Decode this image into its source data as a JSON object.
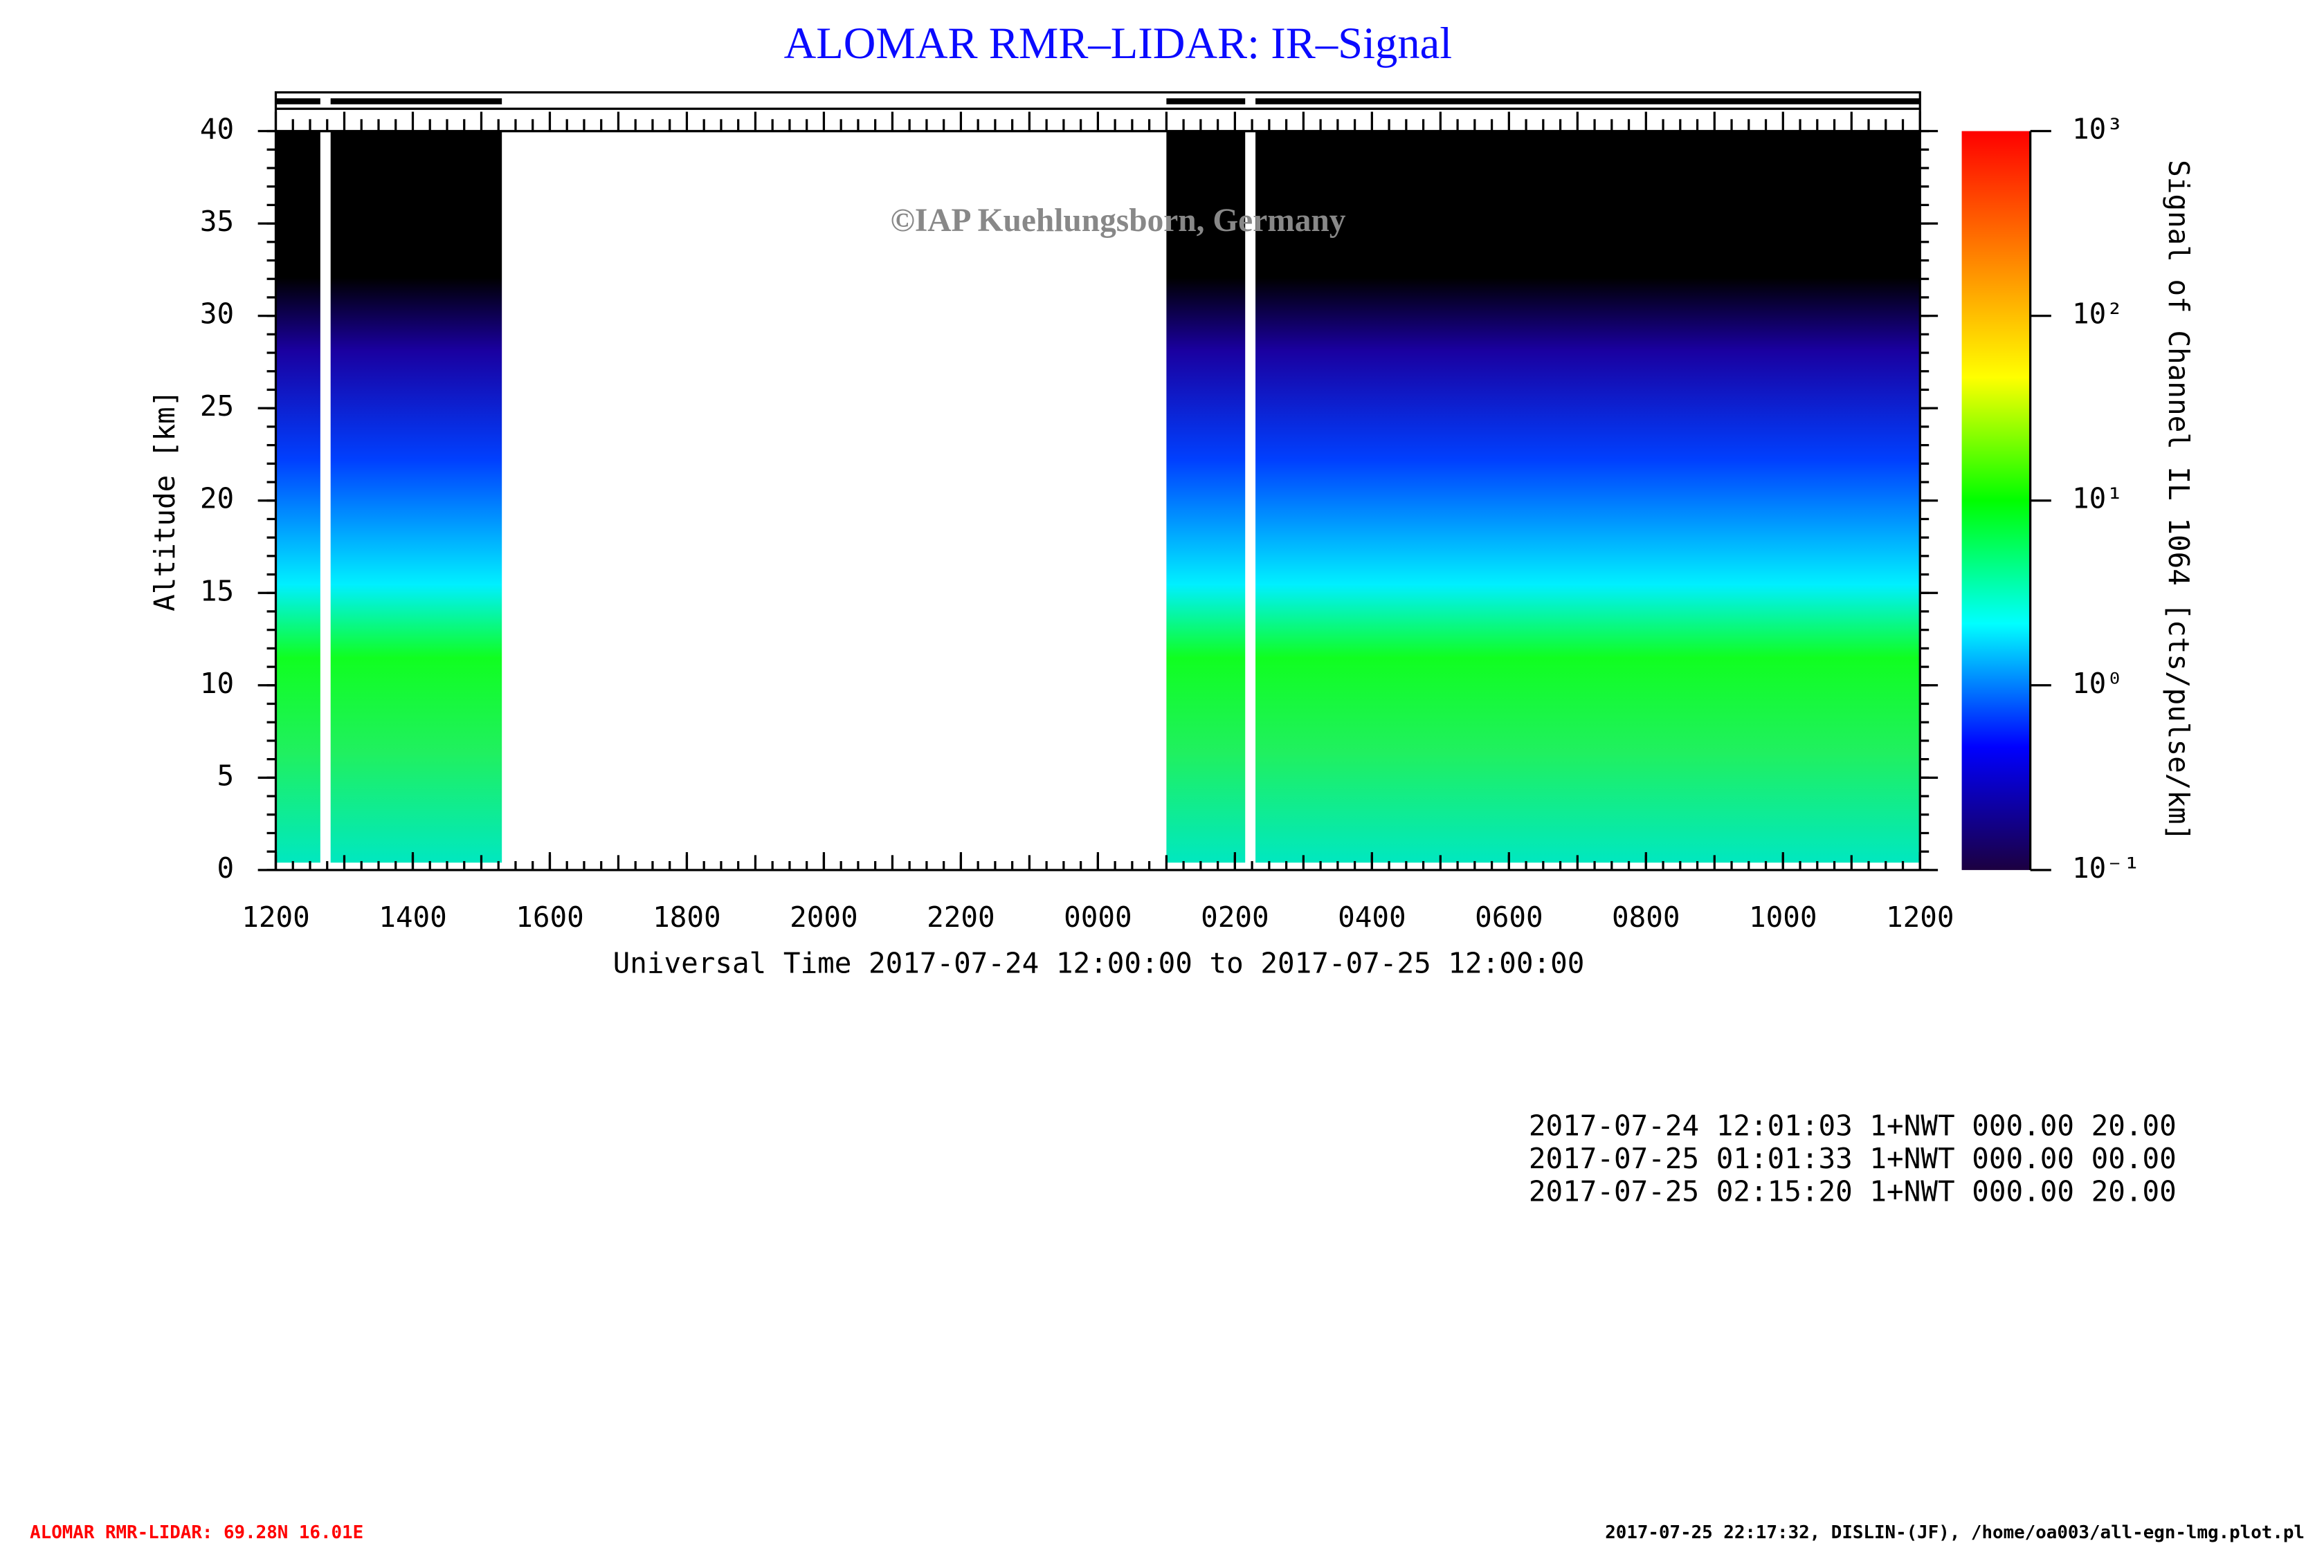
{
  "chart_data": {
    "type": "heatmap",
    "title": "ALOMAR RMR–LIDAR: IR–Signal",
    "watermark": "©IAP Kuehlungsborn, Germany",
    "x_label": "Universal Time 2017-07-24 12:00:00 to 2017-07-25 12:00:00",
    "y_label": "Altitude [km]",
    "colorbar_label": "Signal of Channel IL 1064 [cts/pulse/km]",
    "xlim": [
      0,
      24
    ],
    "xticks": [
      {
        "value": 0,
        "label": "1200"
      },
      {
        "value": 2,
        "label": "1400"
      },
      {
        "value": 4,
        "label": "1600"
      },
      {
        "value": 6,
        "label": "1800"
      },
      {
        "value": 8,
        "label": "2000"
      },
      {
        "value": 10,
        "label": "2200"
      },
      {
        "value": 12,
        "label": "0000"
      },
      {
        "value": 14,
        "label": "0200"
      },
      {
        "value": 16,
        "label": "0400"
      },
      {
        "value": 18,
        "label": "0600"
      },
      {
        "value": 20,
        "label": "0800"
      },
      {
        "value": 22,
        "label": "1000"
      },
      {
        "value": 24,
        "label": "1200"
      }
    ],
    "ylim": [
      0,
      40
    ],
    "yticks": [
      0,
      5,
      10,
      15,
      20,
      25,
      30,
      35,
      40
    ],
    "colorbar_lim": [
      0.1,
      1000
    ],
    "colorbar_log": true,
    "colorbar_ticks": [
      {
        "value": 0.1,
        "label": "10⁻¹"
      },
      {
        "value": 1,
        "label": "10⁰"
      },
      {
        "value": 10,
        "label": "10¹"
      },
      {
        "value": 100,
        "label": "10²"
      },
      {
        "value": 1000,
        "label": "10³"
      }
    ],
    "colormap": [
      "#1c0040",
      "#0000ff",
      "#00ffff",
      "#00ff00",
      "#ffff00",
      "#ff8000",
      "#ff0000"
    ],
    "observations": [
      {
        "start": 0,
        "end": 0.65
      },
      {
        "start": 0.8,
        "end": 3.3
      },
      {
        "start": 13.0,
        "end": 14.15
      },
      {
        "start": 14.3,
        "end": 24
      }
    ],
    "info_lines": [
      "2017-07-24 12:01:03 1+NWT 000.00 20.00",
      "2017-07-25 01:01:33 1+NWT 000.00 00.00",
      "2017-07-25 02:15:20 1+NWT 000.00 20.00"
    ],
    "footer_left": "ALOMAR RMR-LIDAR: 69.28N 16.01E",
    "footer_right": "2017-07-25 22:17:32, DISLIN-(JF), /home/oa003/all-egn-lmg.plot.pl"
  }
}
